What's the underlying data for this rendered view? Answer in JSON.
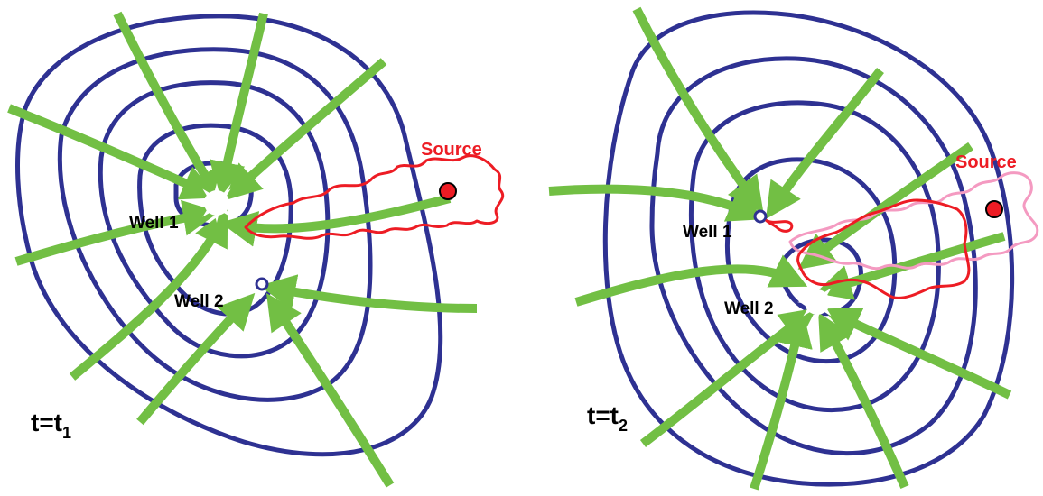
{
  "colors": {
    "contour": "#2e3192",
    "flow_arrow": "#72bf44",
    "plume_current": "#ed1c24",
    "plume_previous": "#f49ac1",
    "source_fill": "#ed1c24",
    "well_ring": "#2e3192"
  },
  "panel_left": {
    "time_label": "t=t",
    "time_subscript": "1",
    "well1_label": "Well 1",
    "well2_label": "Well 2",
    "source_label": "Source"
  },
  "panel_right": {
    "time_label": "t=t",
    "time_subscript": "2",
    "well1_label": "Well 1",
    "well2_label": "Well 2",
    "source_label": "Source"
  }
}
